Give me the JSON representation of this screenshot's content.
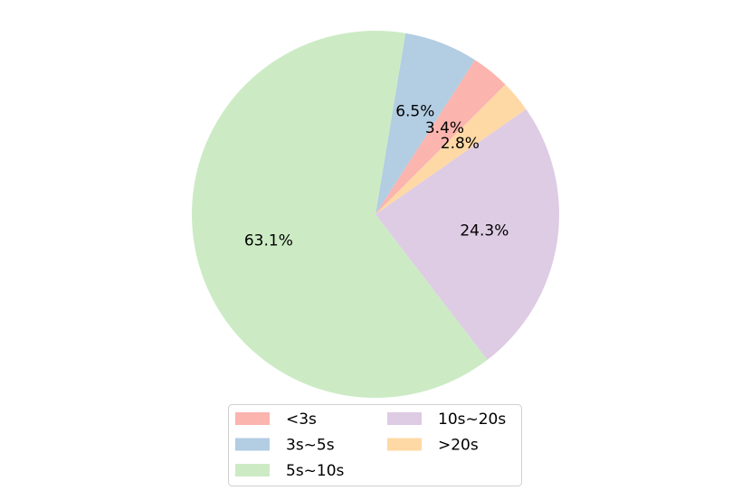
{
  "chart_data": {
    "type": "pie",
    "categories": [
      "<3s",
      "3s~5s",
      "5s~10s",
      "10s~20s",
      ">20s"
    ],
    "values": [
      3.4,
      6.5,
      63.1,
      24.3,
      2.8
    ],
    "value_labels": [
      "3.4%",
      "6.5%",
      "63.1%",
      "24.3%",
      "2.8%"
    ],
    "colors": [
      "#fbb4ae",
      "#b3cde3",
      "#ccebc5",
      "#decbe4",
      "#fed9a6"
    ],
    "legend": "lower center"
  }
}
